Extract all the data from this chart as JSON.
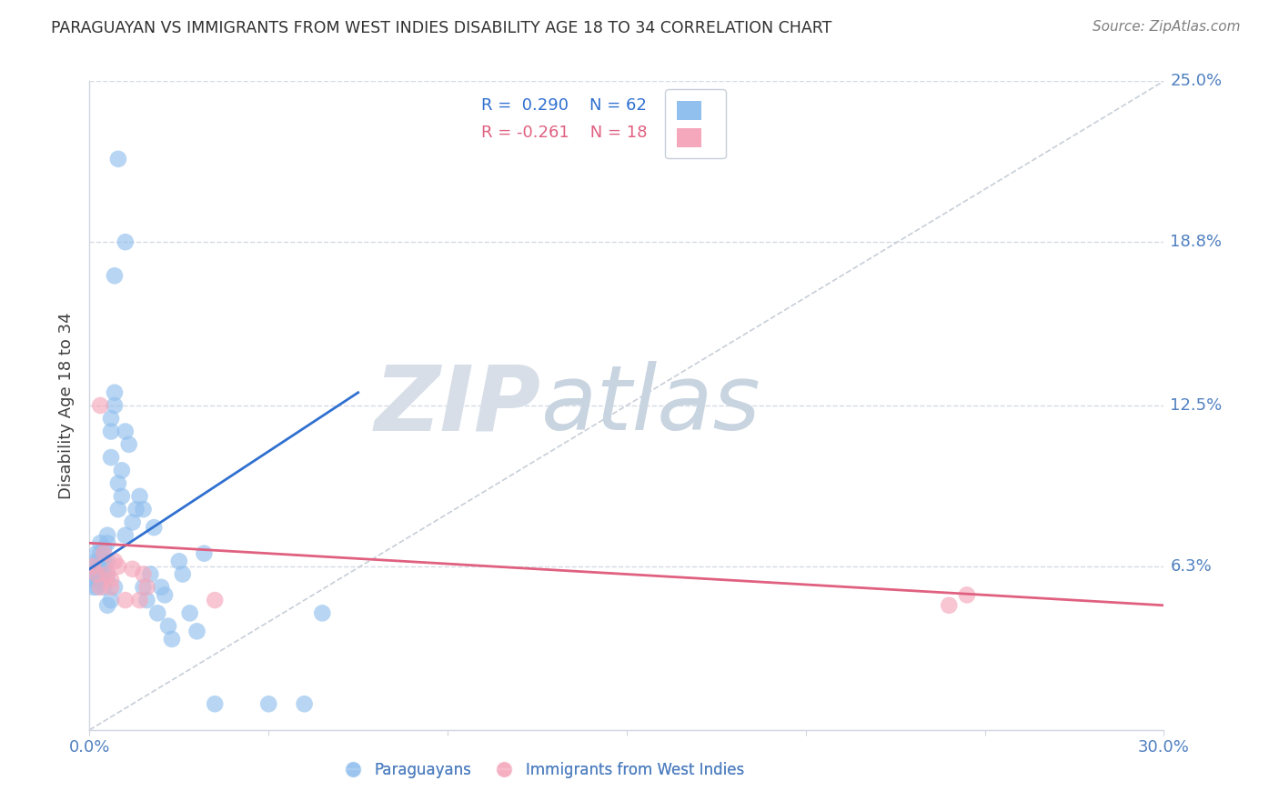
{
  "title": "PARAGUAYAN VS IMMIGRANTS FROM WEST INDIES DISABILITY AGE 18 TO 34 CORRELATION CHART",
  "source": "Source: ZipAtlas.com",
  "ylabel": "Disability Age 18 to 34",
  "xlim": [
    0.0,
    0.3
  ],
  "ylim": [
    0.0,
    0.25
  ],
  "yticks": [
    0.0,
    0.063,
    0.125,
    0.188,
    0.25
  ],
  "ytick_labels": [
    "",
    "6.3%",
    "12.5%",
    "18.8%",
    "25.0%"
  ],
  "xticks": [
    0.0,
    0.05,
    0.1,
    0.15,
    0.2,
    0.25,
    0.3
  ],
  "xtick_labels": [
    "0.0%",
    "",
    "",
    "",
    "",
    "",
    "30.0%"
  ],
  "blue_scatter_x": [
    0.001,
    0.001,
    0.001,
    0.001,
    0.002,
    0.002,
    0.002,
    0.002,
    0.002,
    0.003,
    0.003,
    0.003,
    0.003,
    0.003,
    0.004,
    0.004,
    0.004,
    0.004,
    0.005,
    0.005,
    0.005,
    0.005,
    0.006,
    0.006,
    0.006,
    0.007,
    0.007,
    0.007,
    0.008,
    0.008,
    0.009,
    0.009,
    0.01,
    0.01,
    0.011,
    0.012,
    0.013,
    0.014,
    0.015,
    0.015,
    0.016,
    0.017,
    0.018,
    0.019,
    0.02,
    0.021,
    0.022,
    0.023,
    0.025,
    0.026,
    0.028,
    0.03,
    0.032,
    0.035,
    0.05,
    0.06,
    0.065,
    0.01,
    0.008,
    0.007,
    0.006,
    0.005
  ],
  "blue_scatter_y": [
    0.063,
    0.06,
    0.058,
    0.055,
    0.068,
    0.065,
    0.062,
    0.058,
    0.055,
    0.072,
    0.068,
    0.065,
    0.06,
    0.058,
    0.07,
    0.065,
    0.06,
    0.055,
    0.075,
    0.072,
    0.065,
    0.06,
    0.12,
    0.115,
    0.105,
    0.13,
    0.125,
    0.055,
    0.095,
    0.085,
    0.1,
    0.09,
    0.115,
    0.075,
    0.11,
    0.08,
    0.085,
    0.09,
    0.085,
    0.055,
    0.05,
    0.06,
    0.078,
    0.045,
    0.055,
    0.052,
    0.04,
    0.035,
    0.065,
    0.06,
    0.045,
    0.038,
    0.068,
    0.01,
    0.01,
    0.01,
    0.045,
    0.188,
    0.22,
    0.175,
    0.05,
    0.048
  ],
  "pink_scatter_x": [
    0.001,
    0.002,
    0.003,
    0.003,
    0.004,
    0.005,
    0.006,
    0.006,
    0.007,
    0.008,
    0.012,
    0.014,
    0.015,
    0.016,
    0.035,
    0.24,
    0.245,
    0.01
  ],
  "pink_scatter_y": [
    0.063,
    0.06,
    0.055,
    0.125,
    0.068,
    0.06,
    0.058,
    0.055,
    0.065,
    0.063,
    0.062,
    0.05,
    0.06,
    0.055,
    0.05,
    0.048,
    0.052,
    0.05
  ],
  "blue_R": 0.29,
  "blue_N": 62,
  "pink_R": -0.261,
  "pink_N": 18,
  "blue_color": "#92c0ee",
  "pink_color": "#f5a8bc",
  "blue_line_color": "#3070d0",
  "pink_line_color": "#e06080",
  "ref_line_color": "#c8cfd8",
  "grid_color": "#d5dae5",
  "title_color": "#303030",
  "source_color": "#808080",
  "tick_color": "#5080c0",
  "watermark_color": "#d8dee8",
  "background_color": "#ffffff",
  "blue_trend_x0": 0.0,
  "blue_trend_x1": 0.075,
  "blue_trend_y0": 0.062,
  "blue_trend_y1": 0.13,
  "pink_trend_x0": 0.0,
  "pink_trend_x1": 0.3,
  "pink_trend_y0": 0.072,
  "pink_trend_y1": 0.048
}
